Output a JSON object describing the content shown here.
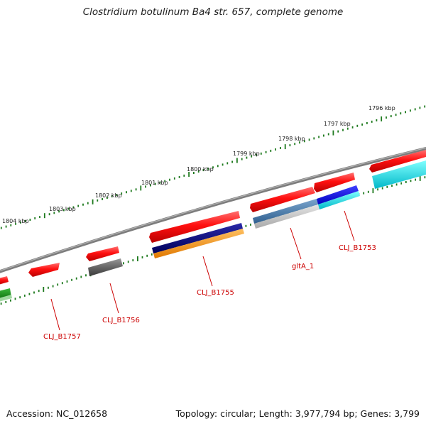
{
  "title": "Clostridium botulinum Ba4 str. 657, complete genome",
  "footer": {
    "accession": "Accession: NC_012658",
    "topology": "Topology: circular; Length: 3,977,794 bp; Genes: 3,799"
  },
  "colors": {
    "backbone": "#7d7d7d",
    "tick": "#1e7a1e",
    "cds": "#ee0000",
    "label": "#cc0000",
    "leader": "#cc0000"
  },
  "scale_labels": [
    "1804 kbp",
    "1803 kbp",
    "1802 kbp",
    "1801 kbp",
    "1800 kbp",
    "1799 kbp",
    "1798 kbp",
    "1797 kbp",
    "1796 kbp"
  ],
  "feature_labels": [
    "CLJ_B1757",
    "CLJ_B1756",
    "CLJ_B1755",
    "gltA_1",
    "CLJ_B1753"
  ],
  "track_colors": {
    "red": "#ee0000",
    "dark_grey": "#555555",
    "navy": "#000080",
    "orange": "#ff9900",
    "steel_blue": "#4a7fb0",
    "light_grey": "#c8c8c8",
    "blue": "#0000ff",
    "cyan": "#00e0e0",
    "green": "#1a8a1a"
  }
}
